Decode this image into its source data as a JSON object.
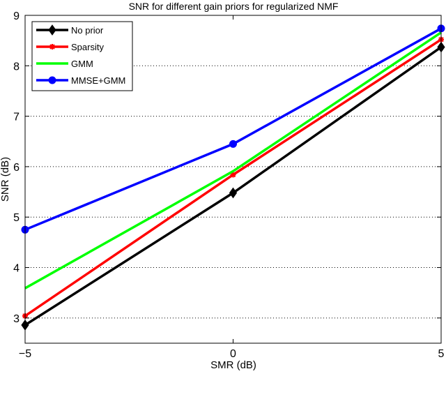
{
  "chart_data": {
    "type": "line",
    "title": "SNR for different gain priors for regularized NMF",
    "xlabel": "SMR (dB)",
    "ylabel": "SNR (dB)",
    "x": [
      -5,
      0,
      5
    ],
    "xlim": [
      -5,
      5
    ],
    "ylim": [
      2.5,
      9
    ],
    "xticks": [
      "-5",
      "0",
      "5"
    ],
    "yticks": [
      "3",
      "4",
      "5",
      "6",
      "7",
      "8",
      "9"
    ],
    "grid": "horizontal dotted",
    "legend_position": "top-left",
    "series": [
      {
        "name": "No prior",
        "values": [
          2.86,
          5.48,
          8.37
        ],
        "color": "#000000",
        "marker": "diamond"
      },
      {
        "name": "Sparsity",
        "values": [
          3.04,
          5.84,
          8.52
        ],
        "color": "#ff0000",
        "marker": "asterisk"
      },
      {
        "name": "GMM",
        "values": [
          3.59,
          5.91,
          8.66
        ],
        "color": "#00ff00",
        "marker": "none"
      },
      {
        "name": "MMSE+GMM",
        "values": [
          4.75,
          6.45,
          8.74
        ],
        "color": "#0000ff",
        "marker": "circle"
      }
    ]
  }
}
